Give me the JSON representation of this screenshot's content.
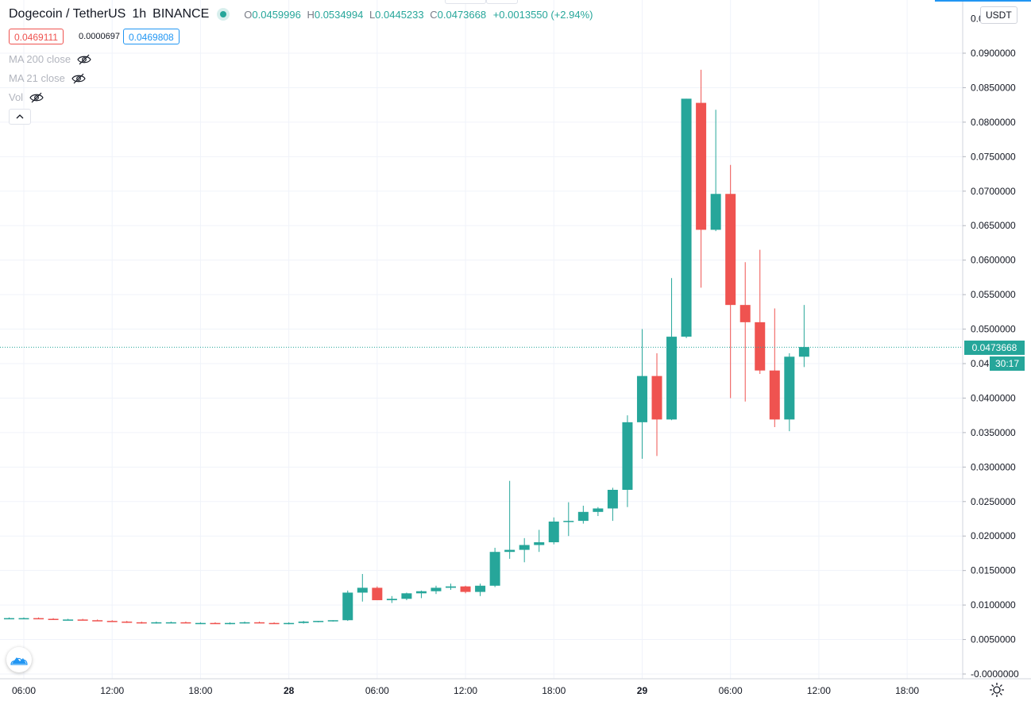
{
  "header": {
    "symbol": "Dogecoin / TetherUS",
    "interval": "1h",
    "exchange": "BINANCE",
    "ohlc": {
      "o_label": "O",
      "o": "0.0459996",
      "h_label": "H",
      "h": "0.0534994",
      "l_label": "L",
      "l": "0.0445233",
      "c_label": "C",
      "c": "0.0473668",
      "change": "+0.0013550 (+2.94%)"
    }
  },
  "trade": {
    "sell": "0.0469111",
    "spread": "0.0000697",
    "buy": "0.0469808"
  },
  "indicators": [
    {
      "label": "MA 200 close",
      "icon": "eye-hidden-icon"
    },
    {
      "label": "MA 21 close",
      "icon": "eye-hidden-icon"
    },
    {
      "label": "Vol",
      "icon": "eye-hidden-icon"
    }
  ],
  "currency_button": "USDT",
  "last_price_label": "0.0473668",
  "countdown": "30:17",
  "colors": {
    "up": "#26a69a",
    "down": "#ef5350",
    "grid": "#f0f3fa",
    "text": "#131722",
    "axis_text": "#131722",
    "accent_blue": "#2196f3"
  },
  "chart_data": {
    "type": "candlestick",
    "title": "Dogecoin / TetherUS",
    "xlabel": "",
    "ylabel": "",
    "ylim": [
      -0.001,
      0.0955
    ],
    "grid": true,
    "y_ticks": [
      "0.0900000",
      "0.0850000",
      "0.0800000",
      "0.0750000",
      "0.0700000",
      "0.0650000",
      "0.0600000",
      "0.0550000",
      "0.0500000",
      "0.0450000",
      "0.0400000",
      "0.0350000",
      "0.0300000",
      "0.0250000",
      "0.0200000",
      "0.0150000",
      "0.0100000",
      "0.0050000",
      "-0.0000000"
    ],
    "y_tick_values": [
      0.09,
      0.085,
      0.08,
      0.075,
      0.07,
      0.065,
      0.06,
      0.055,
      0.05,
      0.045,
      0.04,
      0.035,
      0.03,
      0.025,
      0.02,
      0.015,
      0.01,
      0.005,
      0.0
    ],
    "y_top_partial_label": "0.0",
    "x_ticks": [
      {
        "label": "06:00",
        "hour": 6,
        "bold": false
      },
      {
        "label": "12:00",
        "hour": 12,
        "bold": false
      },
      {
        "label": "18:00",
        "hour": 18,
        "bold": false
      },
      {
        "label": "28",
        "hour": 24,
        "bold": true
      },
      {
        "label": "06:00",
        "hour": 30,
        "bold": false
      },
      {
        "label": "12:00",
        "hour": 36,
        "bold": false
      },
      {
        "label": "18:00",
        "hour": 42,
        "bold": false
      },
      {
        "label": "29",
        "hour": 48,
        "bold": true
      },
      {
        "label": "06:00",
        "hour": 54,
        "bold": false
      },
      {
        "label": "12:00",
        "hour": 60,
        "bold": false
      },
      {
        "label": "18:00",
        "hour": 66,
        "bold": false
      }
    ],
    "last_price": 0.0473668,
    "candles": [
      {
        "t": 4,
        "o": 0.0081,
        "h": 0.0082,
        "l": 0.008,
        "c": 0.0081
      },
      {
        "t": 5,
        "o": 0.0081,
        "h": 0.0082,
        "l": 0.008,
        "c": 0.0081
      },
      {
        "t": 6,
        "o": 0.0081,
        "h": 0.0082,
        "l": 0.008,
        "c": 0.0081
      },
      {
        "t": 7,
        "o": 0.0081,
        "h": 0.0082,
        "l": 0.008,
        "c": 0.008
      },
      {
        "t": 8,
        "o": 0.008,
        "h": 0.0081,
        "l": 0.0079,
        "c": 0.0079
      },
      {
        "t": 9,
        "o": 0.0079,
        "h": 0.008,
        "l": 0.0078,
        "c": 0.0079
      },
      {
        "t": 10,
        "o": 0.0079,
        "h": 0.008,
        "l": 0.0078,
        "c": 0.0078
      },
      {
        "t": 11,
        "o": 0.0078,
        "h": 0.0079,
        "l": 0.0077,
        "c": 0.0077
      },
      {
        "t": 12,
        "o": 0.0077,
        "h": 0.0078,
        "l": 0.0076,
        "c": 0.0076
      },
      {
        "t": 13,
        "o": 0.0076,
        "h": 0.0077,
        "l": 0.0074,
        "c": 0.0075
      },
      {
        "t": 14,
        "o": 0.0075,
        "h": 0.0076,
        "l": 0.0073,
        "c": 0.0074
      },
      {
        "t": 15,
        "o": 0.0074,
        "h": 0.0076,
        "l": 0.0073,
        "c": 0.0075
      },
      {
        "t": 16,
        "o": 0.0075,
        "h": 0.0076,
        "l": 0.0074,
        "c": 0.0075
      },
      {
        "t": 17,
        "o": 0.0075,
        "h": 0.0076,
        "l": 0.0074,
        "c": 0.0074
      },
      {
        "t": 18,
        "o": 0.0074,
        "h": 0.0075,
        "l": 0.0073,
        "c": 0.0074
      },
      {
        "t": 19,
        "o": 0.0074,
        "h": 0.0075,
        "l": 0.0073,
        "c": 0.0073
      },
      {
        "t": 20,
        "o": 0.0073,
        "h": 0.0075,
        "l": 0.0072,
        "c": 0.0074
      },
      {
        "t": 21,
        "o": 0.0074,
        "h": 0.0076,
        "l": 0.0073,
        "c": 0.0075
      },
      {
        "t": 22,
        "o": 0.0075,
        "h": 0.0076,
        "l": 0.0074,
        "c": 0.0074
      },
      {
        "t": 23,
        "o": 0.0074,
        "h": 0.0075,
        "l": 0.0073,
        "c": 0.0073
      },
      {
        "t": 24,
        "o": 0.0073,
        "h": 0.0075,
        "l": 0.0072,
        "c": 0.0074
      },
      {
        "t": 25,
        "o": 0.0074,
        "h": 0.0077,
        "l": 0.0073,
        "c": 0.0076
      },
      {
        "t": 26,
        "o": 0.0076,
        "h": 0.0077,
        "l": 0.0075,
        "c": 0.0077
      },
      {
        "t": 27,
        "o": 0.0077,
        "h": 0.0078,
        "l": 0.0076,
        "c": 0.0078
      },
      {
        "t": 28,
        "o": 0.0078,
        "h": 0.0121,
        "l": 0.0077,
        "c": 0.0118
      },
      {
        "t": 29,
        "o": 0.0118,
        "h": 0.0145,
        "l": 0.0105,
        "c": 0.0125
      },
      {
        "t": 30,
        "o": 0.0125,
        "h": 0.0127,
        "l": 0.0107,
        "c": 0.0107
      },
      {
        "t": 31,
        "o": 0.0107,
        "h": 0.0113,
        "l": 0.0103,
        "c": 0.0109
      },
      {
        "t": 32,
        "o": 0.0109,
        "h": 0.0118,
        "l": 0.0107,
        "c": 0.0117
      },
      {
        "t": 33,
        "o": 0.0117,
        "h": 0.0121,
        "l": 0.011,
        "c": 0.012
      },
      {
        "t": 34,
        "o": 0.012,
        "h": 0.0128,
        "l": 0.0116,
        "c": 0.0125
      },
      {
        "t": 35,
        "o": 0.0125,
        "h": 0.0131,
        "l": 0.0122,
        "c": 0.0127
      },
      {
        "t": 36,
        "o": 0.0127,
        "h": 0.0128,
        "l": 0.0117,
        "c": 0.0119
      },
      {
        "t": 37,
        "o": 0.0119,
        "h": 0.0131,
        "l": 0.0113,
        "c": 0.0128
      },
      {
        "t": 38,
        "o": 0.0128,
        "h": 0.0183,
        "l": 0.0126,
        "c": 0.0177
      },
      {
        "t": 39,
        "o": 0.0177,
        "h": 0.028,
        "l": 0.0167,
        "c": 0.018
      },
      {
        "t": 40,
        "o": 0.018,
        "h": 0.0197,
        "l": 0.0162,
        "c": 0.0187
      },
      {
        "t": 41,
        "o": 0.0187,
        "h": 0.0209,
        "l": 0.0177,
        "c": 0.0191
      },
      {
        "t": 42,
        "o": 0.0191,
        "h": 0.0227,
        "l": 0.0188,
        "c": 0.0221
      },
      {
        "t": 43,
        "o": 0.0221,
        "h": 0.0249,
        "l": 0.02,
        "c": 0.0222
      },
      {
        "t": 44,
        "o": 0.0222,
        "h": 0.0244,
        "l": 0.0218,
        "c": 0.0235
      },
      {
        "t": 45,
        "o": 0.0235,
        "h": 0.0242,
        "l": 0.0229,
        "c": 0.024
      },
      {
        "t": 46,
        "o": 0.024,
        "h": 0.027,
        "l": 0.0222,
        "c": 0.0267
      },
      {
        "t": 47,
        "o": 0.0267,
        "h": 0.0375,
        "l": 0.0242,
        "c": 0.0365
      },
      {
        "t": 48,
        "o": 0.0365,
        "h": 0.05,
        "l": 0.0312,
        "c": 0.0432
      },
      {
        "t": 49,
        "o": 0.0432,
        "h": 0.0465,
        "l": 0.0316,
        "c": 0.0369
      },
      {
        "t": 50,
        "o": 0.0369,
        "h": 0.0574,
        "l": 0.0368,
        "c": 0.0489
      },
      {
        "t": 51,
        "o": 0.0489,
        "h": 0.0834,
        "l": 0.0487,
        "c": 0.0834
      },
      {
        "t": 52,
        "o": 0.0828,
        "h": 0.0876,
        "l": 0.056,
        "c": 0.0644
      },
      {
        "t": 53,
        "o": 0.0644,
        "h": 0.0818,
        "l": 0.0642,
        "c": 0.0696
      },
      {
        "t": 54,
        "o": 0.0696,
        "h": 0.0738,
        "l": 0.04,
        "c": 0.0535
      },
      {
        "t": 55,
        "o": 0.0535,
        "h": 0.0597,
        "l": 0.0395,
        "c": 0.051
      },
      {
        "t": 56,
        "o": 0.051,
        "h": 0.0615,
        "l": 0.0435,
        "c": 0.044
      },
      {
        "t": 57,
        "o": 0.044,
        "h": 0.053,
        "l": 0.0358,
        "c": 0.0369
      },
      {
        "t": 58,
        "o": 0.0369,
        "h": 0.0465,
        "l": 0.0352,
        "c": 0.046
      },
      {
        "t": 59,
        "o": 0.046,
        "h": 0.0535,
        "l": 0.0445,
        "c": 0.0474
      }
    ]
  }
}
